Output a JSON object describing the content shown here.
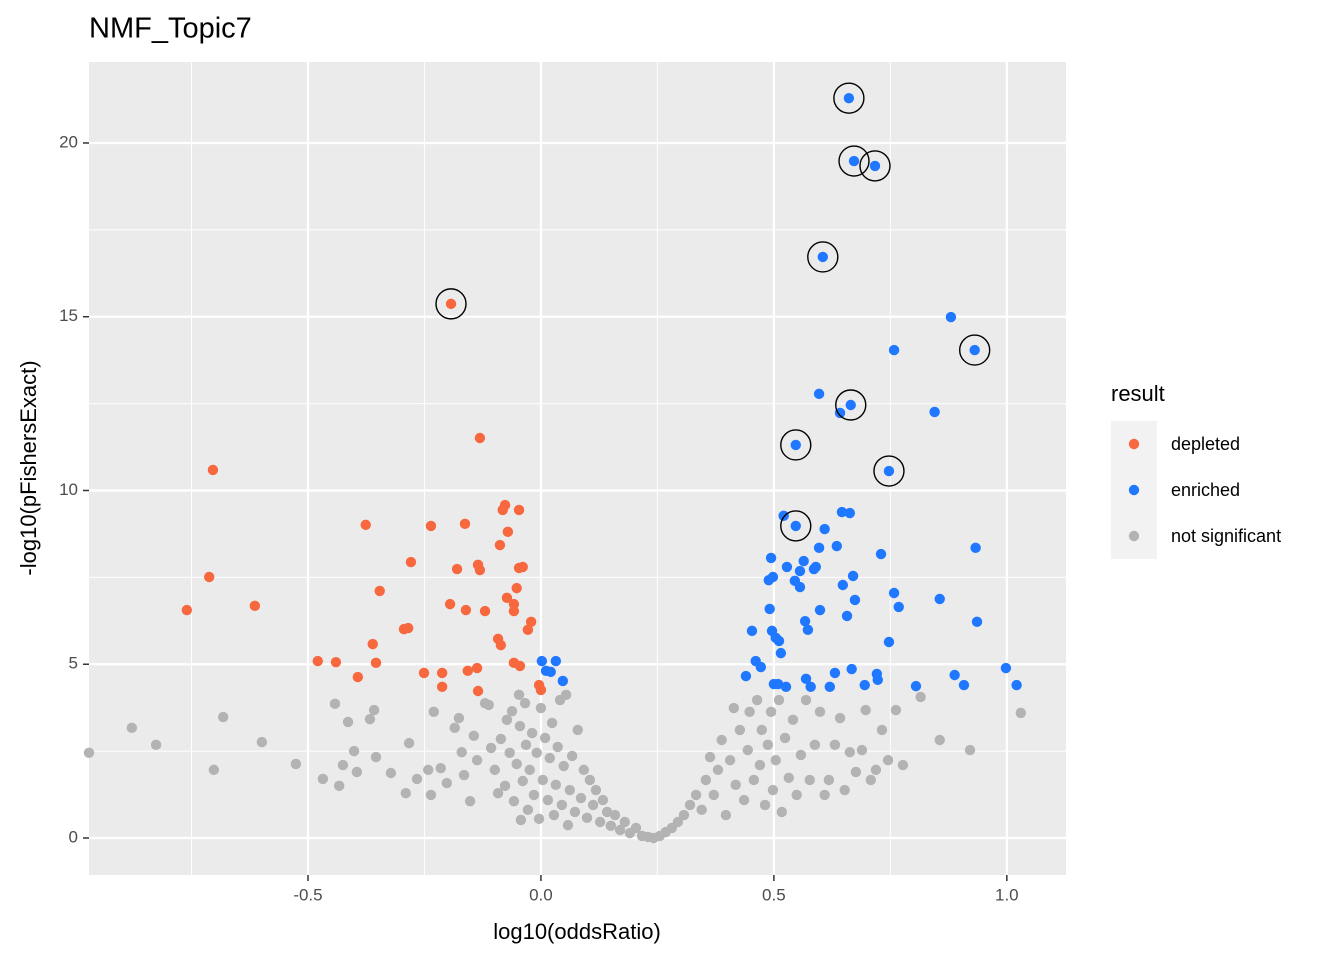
{
  "chart_data": {
    "type": "scatter",
    "title": "NMF_Topic7",
    "x_label": "log10(oddsRatio)",
    "y_label": "-log10(pFishersExact)",
    "legend_title": "result",
    "legend_position": "right",
    "grid": true,
    "xlim": [
      -0.97,
      1.127
    ],
    "ylim": [
      -1.065,
      22.33
    ],
    "xticks": [
      -0.5,
      {
        "value": 0,
        "label": "0.0"
      },
      0.5,
      {
        "value": 1,
        "label": "1.0"
      }
    ],
    "yticks": [
      0,
      5,
      10,
      15,
      20
    ],
    "x_minor_ticks": [
      -0.75,
      -0.25,
      0.25,
      0.75
    ],
    "y_minor_ticks": [
      2.5,
      7.5,
      12.5,
      17.5
    ],
    "series": [
      {
        "name": "depleted",
        "color": "#F8683F",
        "x": [
          -0.193,
          -0.131,
          -0.704,
          -0.712,
          -0.76,
          -0.614,
          -0.376,
          -0.236,
          -0.163,
          -0.077,
          -0.082,
          -0.047,
          -0.071,
          -0.088,
          -0.279,
          -0.18,
          -0.135,
          -0.131,
          -0.047,
          -0.039,
          -0.346,
          -0.052,
          -0.195,
          -0.073,
          -0.058,
          -0.058,
          -0.12,
          -0.161,
          -0.021,
          -0.028,
          -0.294,
          -0.285,
          -0.361,
          -0.092,
          -0.086,
          -0.479,
          -0.44,
          -0.354,
          -0.058,
          -0.045,
          -0.137,
          -0.157,
          -0.251,
          -0.212,
          -0.393,
          -0.212,
          -0.004,
          0.0,
          -0.135
        ],
        "y": [
          15.37,
          11.51,
          10.59,
          7.51,
          6.56,
          6.68,
          9.01,
          8.98,
          9.04,
          9.58,
          9.44,
          9.44,
          8.81,
          8.43,
          7.94,
          7.74,
          7.86,
          7.71,
          7.77,
          7.8,
          7.11,
          7.19,
          6.73,
          6.91,
          6.73,
          6.53,
          6.53,
          6.56,
          6.22,
          5.99,
          6.01,
          6.04,
          5.58,
          5.73,
          5.55,
          5.09,
          5.06,
          5.04,
          5.04,
          4.95,
          4.89,
          4.81,
          4.75,
          4.75,
          4.63,
          4.35,
          4.4,
          4.26,
          4.23
        ]
      },
      {
        "name": "enriched",
        "color": "#1F78FF",
        "x": [
          0.661,
          0.672,
          0.717,
          0.605,
          0.88,
          0.931,
          0.758,
          0.597,
          0.665,
          0.642,
          0.845,
          0.547,
          0.747,
          0.521,
          0.646,
          0.663,
          0.547,
          0.609,
          0.635,
          0.597,
          0.73,
          0.933,
          0.494,
          0.564,
          0.528,
          0.556,
          0.59,
          0.586,
          0.489,
          0.545,
          0.498,
          0.67,
          0.556,
          0.648,
          0.758,
          0.674,
          0.856,
          0.768,
          0.599,
          0.491,
          0.657,
          0.567,
          0.936,
          0.573,
          0.453,
          0.496,
          0.504,
          0.511,
          0.747,
          0.515,
          0.002,
          0.032,
          0.461,
          0.472,
          0.011,
          0.021,
          0.667,
          0.631,
          0.721,
          0.998,
          0.888,
          0.44,
          0.569,
          0.723,
          0.047,
          0.5,
          0.509,
          0.526,
          0.579,
          0.62,
          0.695,
          0.805,
          0.908,
          1.021
        ],
        "y": [
          21.29,
          19.48,
          19.34,
          16.72,
          14.99,
          14.04,
          14.04,
          12.78,
          12.46,
          12.23,
          12.26,
          11.31,
          10.56,
          9.27,
          9.38,
          9.35,
          8.98,
          8.89,
          8.4,
          8.35,
          8.17,
          8.35,
          8.06,
          7.97,
          7.8,
          7.68,
          7.8,
          7.74,
          7.42,
          7.4,
          7.51,
          7.54,
          7.22,
          7.28,
          7.05,
          6.85,
          6.88,
          6.65,
          6.56,
          6.59,
          6.39,
          6.24,
          6.22,
          5.99,
          5.96,
          5.96,
          5.76,
          5.67,
          5.64,
          5.32,
          5.09,
          5.09,
          5.09,
          4.92,
          4.81,
          4.78,
          4.86,
          4.75,
          4.72,
          4.89,
          4.69,
          4.66,
          4.58,
          4.55,
          4.52,
          4.43,
          4.43,
          4.35,
          4.35,
          4.35,
          4.4,
          4.37,
          4.4,
          4.4
        ]
      },
      {
        "name": "not significant",
        "color": "#B3B3B3",
        "x": [
          -0.97,
          -0.878,
          -0.826,
          -0.682,
          -0.702,
          -0.599,
          -0.526,
          -0.442,
          -0.468,
          -0.414,
          -0.425,
          -0.401,
          -0.433,
          -0.395,
          -0.367,
          -0.358,
          -0.354,
          -0.322,
          -0.283,
          -0.29,
          -0.266,
          -0.242,
          -0.23,
          -0.236,
          -0.215,
          -0.202,
          -0.185,
          -0.176,
          -0.17,
          -0.165,
          -0.152,
          -0.144,
          -0.137,
          -0.12,
          -0.112,
          -0.107,
          -0.099,
          -0.092,
          -0.086,
          -0.077,
          -0.073,
          -0.067,
          -0.062,
          -0.058,
          -0.052,
          -0.047,
          -0.045,
          -0.043,
          -0.039,
          -0.034,
          -0.032,
          -0.028,
          -0.024,
          -0.019,
          -0.015,
          -0.009,
          -0.004,
          0.0,
          0.004,
          0.009,
          0.015,
          0.019,
          0.024,
          0.028,
          0.032,
          0.036,
          0.041,
          0.045,
          0.049,
          0.054,
          0.058,
          0.062,
          0.067,
          0.073,
          0.079,
          0.086,
          0.092,
          0.099,
          0.105,
          0.112,
          0.118,
          0.127,
          0.133,
          0.142,
          0.15,
          0.159,
          0.17,
          0.18,
          0.191,
          0.204,
          0.217,
          0.23,
          0.242,
          0.255,
          0.268,
          0.281,
          0.294,
          0.307,
          0.32,
          0.333,
          0.345,
          0.354,
          0.363,
          0.371,
          0.38,
          0.388,
          0.397,
          0.406,
          0.414,
          0.418,
          0.427,
          0.436,
          0.444,
          0.448,
          0.457,
          0.464,
          0.47,
          0.474,
          0.481,
          0.487,
          0.494,
          0.498,
          0.504,
          0.511,
          0.517,
          0.524,
          0.532,
          0.541,
          0.549,
          0.558,
          0.569,
          0.577,
          0.588,
          0.599,
          0.609,
          0.618,
          0.631,
          0.642,
          0.652,
          0.663,
          0.676,
          0.689,
          0.697,
          0.708,
          0.719,
          0.732,
          0.745,
          0.762,
          0.777,
          0.815,
          0.856,
          0.921,
          1.03
        ],
        "y": [
          2.45,
          3.17,
          2.68,
          3.48,
          1.96,
          2.76,
          2.13,
          3.86,
          1.7,
          3.34,
          2.1,
          2.5,
          1.5,
          1.9,
          3.42,
          3.68,
          2.33,
          1.87,
          2.73,
          1.29,
          1.7,
          1.96,
          3.63,
          1.24,
          2.01,
          1.58,
          3.17,
          3.45,
          2.47,
          1.81,
          1.06,
          2.94,
          2.24,
          3.88,
          3.83,
          2.59,
          1.96,
          1.29,
          2.85,
          1.5,
          3.4,
          2.45,
          3.65,
          1.06,
          2.13,
          4.12,
          3.22,
          0.52,
          1.64,
          3.88,
          2.68,
          0.81,
          1.96,
          3.02,
          1.24,
          2.45,
          0.55,
          3.74,
          1.67,
          2.88,
          1.09,
          2.3,
          3.31,
          0.66,
          1.53,
          2.62,
          3.97,
          0.95,
          2.07,
          4.12,
          0.37,
          1.38,
          2.36,
          0.75,
          3.11,
          1.15,
          1.96,
          0.58,
          1.67,
          0.95,
          1.38,
          0.46,
          1.09,
          0.75,
          0.35,
          0.66,
          0.23,
          0.46,
          0.14,
          0.29,
          0.06,
          0.03,
          0.0,
          0.06,
          0.17,
          0.29,
          0.46,
          0.66,
          0.95,
          1.24,
          0.81,
          1.67,
          2.33,
          1.24,
          1.96,
          2.82,
          0.66,
          2.24,
          3.74,
          1.53,
          3.11,
          1.09,
          2.53,
          3.63,
          1.67,
          3.97,
          2.1,
          3.11,
          0.95,
          2.68,
          3.63,
          1.38,
          2.24,
          3.97,
          0.75,
          2.88,
          1.73,
          3.4,
          1.24,
          2.39,
          3.97,
          1.67,
          2.68,
          3.63,
          1.24,
          1.67,
          2.68,
          3.45,
          1.38,
          2.47,
          1.9,
          2.53,
          3.68,
          1.67,
          1.96,
          3.11,
          2.24,
          3.68,
          2.1,
          4.06,
          2.82,
          2.53,
          3.6
        ]
      }
    ],
    "highlight": {
      "color": "#000000",
      "x": [
        -0.193,
        0.661,
        0.672,
        0.717,
        0.605,
        0.931,
        0.665,
        0.547,
        0.747,
        0.547
      ],
      "y": [
        15.37,
        21.29,
        19.48,
        19.34,
        16.72,
        14.04,
        12.46,
        11.31,
        10.56,
        8.98
      ]
    }
  }
}
